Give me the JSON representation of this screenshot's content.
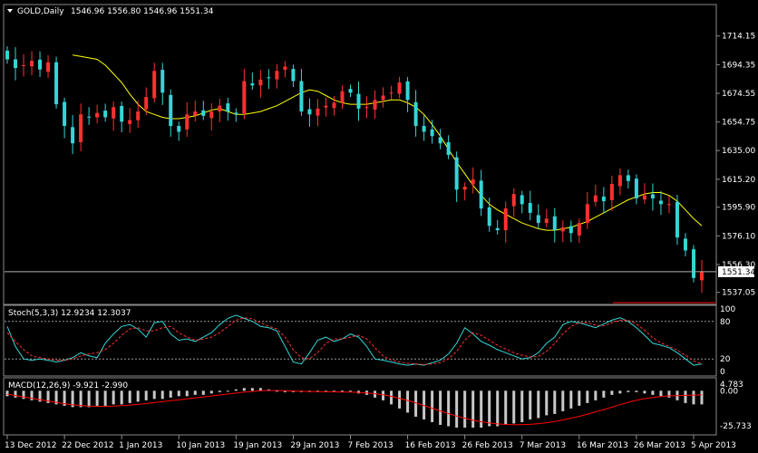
{
  "chart_data": [
    {
      "type": "candlestick",
      "title": "GOLD,Daily",
      "ohlc_readout": "1546.96 1556.80 1546.96 1551.34",
      "current_price_label": "1551.34",
      "current_price": 1551.34,
      "ylim": [
        1530,
        1734
      ],
      "y_ticks": [
        "1714.15",
        "1694.35",
        "1674.55",
        "1654.75",
        "1635.00",
        "1615.20",
        "1595.90",
        "1576.10",
        "1556.30",
        "1537.05"
      ],
      "y_tick_values": [
        1714.15,
        1694.35,
        1674.55,
        1654.75,
        1635.0,
        1615.2,
        1595.9,
        1576.1,
        1556.3,
        1537.05
      ],
      "x_ticks": [
        "13 Dec 2012",
        "22 Dec 2012",
        "1 Jan 2013",
        "10 Jan 2013",
        "19 Jan 2013",
        "29 Jan 2013",
        "7 Feb 2013",
        "16 Feb 2013",
        "26 Feb 2013",
        "7 Mar 2013",
        "16 Mar 2013",
        "26 Mar 2013",
        "5 Apr 2013"
      ],
      "x_tick_index": [
        0,
        7,
        14,
        21,
        28,
        35,
        42,
        49,
        56,
        63,
        70,
        77,
        84
      ],
      "bull_color": "#ff3030",
      "bear_color": "#33d6d6",
      "ma_color": "#ffff00",
      "closes": [
        1698,
        1692,
        1694,
        1697,
        1691,
        1696,
        1667,
        1652,
        1640,
        1660,
        1658,
        1661,
        1658,
        1665,
        1655,
        1656,
        1662,
        1672,
        1690,
        1675,
        1652,
        1648,
        1660,
        1662,
        1659,
        1662,
        1666,
        1662,
        1660,
        1683,
        1680,
        1684,
        1685,
        1690,
        1693,
        1683,
        1662,
        1660,
        1664,
        1666,
        1668,
        1676,
        1675,
        1664,
        1665,
        1670,
        1673,
        1675,
        1682,
        1670,
        1652,
        1648,
        1645,
        1640,
        1632,
        1608,
        1610,
        1615,
        1595,
        1583,
        1580,
        1595,
        1605,
        1598,
        1592,
        1585,
        1588,
        1580,
        1582,
        1578,
        1585,
        1598,
        1604,
        1600,
        1612,
        1618,
        1614,
        1602,
        1604,
        1602,
        1598,
        1598,
        1575,
        1566,
        1547,
        1551
      ],
      "ma_values": [
        1701,
        1700,
        1699,
        1698,
        1694,
        1688,
        1682,
        1674,
        1667,
        1662,
        1660,
        1658,
        1657,
        1657,
        1658,
        1659,
        1661,
        1663,
        1664,
        1662,
        1660,
        1660,
        1661,
        1662,
        1664,
        1666,
        1669,
        1672,
        1675,
        1677,
        1676,
        1673,
        1670,
        1668,
        1667,
        1667,
        1667,
        1668,
        1669,
        1670,
        1670,
        1668,
        1665,
        1660,
        1653,
        1645,
        1636,
        1627,
        1619,
        1611,
        1604,
        1598,
        1594,
        1591,
        1588,
        1585,
        1583,
        1581,
        1580,
        1580,
        1581,
        1582,
        1584,
        1586,
        1589,
        1592,
        1595,
        1598,
        1601,
        1603,
        1605,
        1606,
        1606,
        1604,
        1600,
        1594,
        1588,
        1583
      ]
    },
    {
      "type": "line",
      "title": "Stoch(5,3,3) 12.9234 12.3037",
      "ylim": [
        0,
        100
      ],
      "y_ticks": [
        "100",
        "80",
        "20",
        "0"
      ],
      "y_tick_values": [
        100,
        80,
        20,
        0
      ],
      "levels": [
        80,
        20
      ],
      "series": [
        {
          "color": "#33d6d6",
          "values": [
            72,
            40,
            20,
            18,
            20,
            18,
            15,
            18,
            22,
            30,
            25,
            22,
            45,
            60,
            72,
            75,
            68,
            55,
            78,
            80,
            60,
            50,
            52,
            48,
            55,
            62,
            75,
            85,
            90,
            85,
            80,
            72,
            70,
            65,
            40,
            15,
            12,
            30,
            50,
            55,
            48,
            52,
            60,
            55,
            40,
            20,
            18,
            15,
            12,
            10,
            12,
            10,
            14,
            18,
            28,
            45,
            70,
            60,
            48,
            42,
            35,
            30,
            25,
            20,
            22,
            30,
            45,
            55,
            75,
            80,
            78,
            74,
            70,
            76,
            82,
            86,
            80,
            70,
            58,
            45,
            42,
            38,
            30,
            20,
            10,
            12
          ]
        },
        {
          "color": "#ff3030",
          "dashed": true,
          "values": [
            62,
            48,
            35,
            25,
            22,
            20,
            18,
            18,
            20,
            25,
            28,
            30,
            35,
            45,
            58,
            68,
            70,
            65,
            65,
            70,
            72,
            62,
            55,
            50,
            52,
            55,
            62,
            72,
            82,
            86,
            84,
            78,
            72,
            68,
            55,
            35,
            22,
            20,
            30,
            45,
            52,
            52,
            55,
            58,
            52,
            38,
            25,
            18,
            15,
            13,
            12,
            11,
            12,
            14,
            20,
            32,
            50,
            62,
            58,
            50,
            42,
            36,
            30,
            26,
            23,
            24,
            32,
            45,
            60,
            72,
            78,
            78,
            74,
            73,
            78,
            82,
            82,
            76,
            66,
            54,
            46,
            40,
            34,
            26,
            17,
            12
          ]
        }
      ]
    },
    {
      "type": "bar",
      "title": "MACD(12,26,9) -9.921 -2.990",
      "ylim": [
        -31,
        7.5
      ],
      "y_ticks": [
        "4.783",
        "0.00",
        "-25.733"
      ],
      "y_tick_values": [
        4.783,
        0,
        -25.733
      ],
      "bar_color": "#c8c8c8",
      "signal_color": "#ff0000",
      "values": [
        -4,
        -5,
        -6,
        -7,
        -8,
        -9,
        -10,
        -11,
        -12,
        -12,
        -12,
        -11,
        -11,
        -10,
        -10,
        -9,
        -8,
        -7,
        -6,
        -6,
        -5,
        -4,
        -4,
        -3,
        -3,
        -2,
        -1,
        0,
        1,
        2,
        2,
        2,
        1,
        0,
        -1,
        -1,
        -1,
        -1,
        -1,
        -1,
        -1,
        -1,
        -1,
        -2,
        -3,
        -5,
        -7,
        -10,
        -13,
        -16,
        -19,
        -21,
        -23,
        -25,
        -26,
        -27,
        -27,
        -27,
        -27,
        -26,
        -26,
        -25,
        -24,
        -23,
        -21,
        -20,
        -18,
        -17,
        -15,
        -13,
        -11,
        -9,
        -7,
        -5,
        -3,
        -2,
        -1,
        -1,
        -2,
        -3,
        -4,
        -5,
        -7,
        -9,
        -10,
        -10
      ],
      "signal": [
        -2.5,
        -3.5,
        -4.5,
        -5.5,
        -6.5,
        -7.5,
        -8.5,
        -9.5,
        -10.2,
        -10.8,
        -11.2,
        -11.4,
        -11.4,
        -11.2,
        -10.9,
        -10.5,
        -10,
        -9.4,
        -8.7,
        -8,
        -7.3,
        -6.6,
        -5.9,
        -5.2,
        -4.5,
        -3.8,
        -3.1,
        -2.4,
        -1.7,
        -1,
        -0.5,
        0,
        0.2,
        0.2,
        0,
        -0.2,
        -0.4,
        -0.5,
        -0.6,
        -0.7,
        -0.8,
        -0.9,
        -1,
        -1.2,
        -1.6,
        -2.2,
        -3,
        -4.1,
        -5.5,
        -7.1,
        -8.9,
        -10.8,
        -12.8,
        -14.8,
        -16.7,
        -18.5,
        -20.1,
        -21.5,
        -22.7,
        -23.6,
        -24.3,
        -24.7,
        -24.9,
        -24.9,
        -24.6,
        -24.1,
        -23.4,
        -22.5,
        -21.4,
        -20.1,
        -18.7,
        -17.1,
        -15.5,
        -13.8,
        -12,
        -10.2,
        -8.5,
        -7,
        -5.8,
        -4.9,
        -4.2,
        -3.8,
        -3.6,
        -3.4,
        -3.2,
        -3
      ]
    }
  ]
}
